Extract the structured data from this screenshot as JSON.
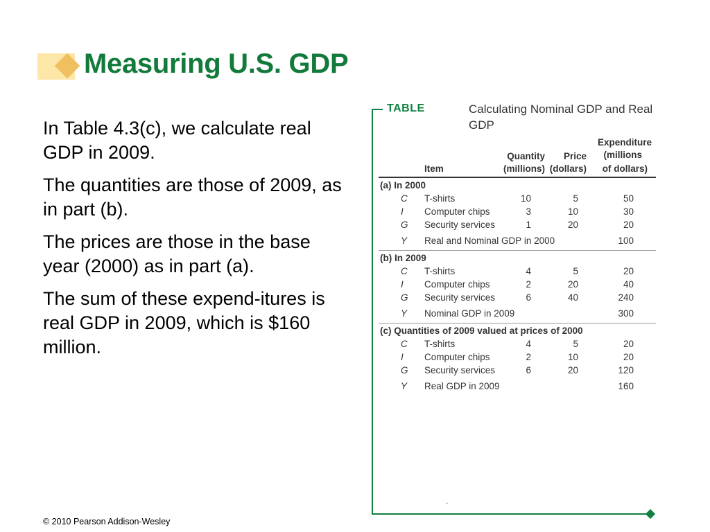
{
  "title": "Measuring U.S. GDP",
  "bullets": [
    "In Table 4.3(c), we calculate real GDP in 2009.",
    "The quantities are those of 2009, as in part (b).",
    "The prices are those in the base year (2000) as in part (a).",
    "The sum of these expend-itures is real GDP in 2009, which is $160 million."
  ],
  "table": {
    "tag": "TABLE",
    "caption": "Calculating Nominal GDP and Real GDP",
    "headers": {
      "item": "Item",
      "quantity_line1": "Quantity",
      "quantity_line2": "(millions)",
      "price_line1": "Price",
      "price_line2": "(dollars)",
      "expenditure_line1": "Expenditure",
      "expenditure_line2": "(millions",
      "expenditure_line3": "of dollars)"
    },
    "sections": [
      {
        "label": "(a) In 2000",
        "rows": [
          {
            "code": "C",
            "item": "T-shirts",
            "quantity": "10",
            "price": "5",
            "expenditure": "50"
          },
          {
            "code": "I",
            "item": "Computer chips",
            "quantity": "3",
            "price": "10",
            "expenditure": "30"
          },
          {
            "code": "G",
            "item": "Security services",
            "quantity": "1",
            "price": "20",
            "expenditure": "20"
          }
        ],
        "total": {
          "code": "Y",
          "item": "Real and Nominal GDP in 2000",
          "expenditure": "100"
        }
      },
      {
        "label": "(b) In 2009",
        "rows": [
          {
            "code": "C",
            "item": "T-shirts",
            "quantity": "4",
            "price": "5",
            "expenditure": "20"
          },
          {
            "code": "I",
            "item": "Computer chips",
            "quantity": "2",
            "price": "20",
            "expenditure": "40"
          },
          {
            "code": "G",
            "item": "Security services",
            "quantity": "6",
            "price": "40",
            "expenditure": "240"
          }
        ],
        "total": {
          "code": "Y",
          "item": "Nominal GDP in 2009",
          "expenditure": "300"
        }
      },
      {
        "label": "(c) Quantities of 2009 valued at prices of 2000",
        "rows": [
          {
            "code": "C",
            "item": "T-shirts",
            "quantity": "4",
            "price": "5",
            "expenditure": "20"
          },
          {
            "code": "I",
            "item": "Computer chips",
            "quantity": "2",
            "price": "10",
            "expenditure": "20"
          },
          {
            "code": "G",
            "item": "Security services",
            "quantity": "6",
            "price": "20",
            "expenditure": "120"
          }
        ],
        "total": {
          "code": "Y",
          "item": "Real GDP in 2009",
          "expenditure": "160"
        }
      }
    ]
  },
  "footer": "© 2010 Pearson Addison-Wesley",
  "colors": {
    "title": "#127a3a",
    "table_accent": "#0f8040",
    "deco_light": "#fde7a8",
    "deco_dark": "#f0c060"
  }
}
